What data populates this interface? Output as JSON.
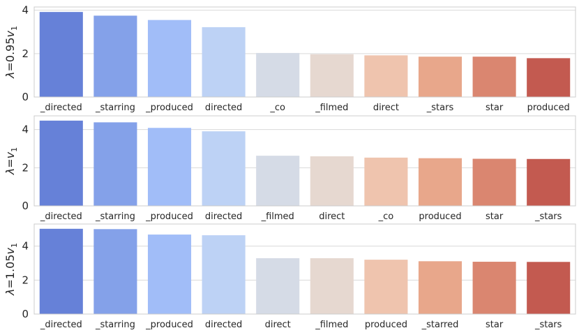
{
  "chart_data": [
    {
      "type": "bar",
      "ylabel_parts": [
        "λ",
        "=0.95",
        "v",
        "1"
      ],
      "categories": [
        "_directed",
        "_starring",
        "_produced",
        "directed",
        "_co",
        "_filmed",
        "direct",
        "_stars",
        "star",
        "produced"
      ],
      "values": [
        3.92,
        3.75,
        3.55,
        3.22,
        2.03,
        1.97,
        1.92,
        1.86,
        1.86,
        1.79
      ],
      "ylim": [
        0,
        4.15
      ],
      "yticks": [
        0,
        2,
        4
      ]
    },
    {
      "type": "bar",
      "ylabel_parts": [
        "λ",
        "=",
        "v",
        "1"
      ],
      "categories": [
        "_directed",
        "_starring",
        "_produced",
        "directed",
        "_filmed",
        "direct",
        "_co",
        "produced",
        "star",
        "_stars"
      ],
      "values": [
        4.47,
        4.38,
        4.09,
        3.91,
        2.63,
        2.6,
        2.53,
        2.5,
        2.47,
        2.46
      ],
      "ylim": [
        0,
        4.72
      ],
      "yticks": [
        0,
        2,
        4
      ]
    },
    {
      "type": "bar",
      "ylabel_parts": [
        "λ",
        "=1.05",
        "v",
        "1"
      ],
      "categories": [
        "_directed",
        "_starring",
        "_produced",
        "directed",
        "direct",
        "_filmed",
        "produced",
        "_starred",
        "star",
        "_stars"
      ],
      "values": [
        5.02,
        5.0,
        4.68,
        4.64,
        3.29,
        3.29,
        3.2,
        3.11,
        3.08,
        3.07
      ],
      "ylim": [
        0,
        5.3
      ],
      "yticks": [
        0,
        2,
        4
      ]
    }
  ],
  "palette": [
    "#6681d8",
    "#84a1e9",
    "#a1bdf8",
    "#bdd2f5",
    "#d5dbe6",
    "#e6d8d0",
    "#efc4ae",
    "#e8a78b",
    "#da8670",
    "#c35a50"
  ],
  "grid": true
}
